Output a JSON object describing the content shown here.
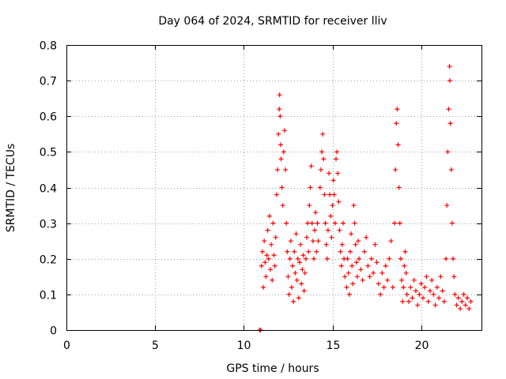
{
  "chart_data": {
    "type": "scatter",
    "title": "Day 064 of 2024, SRMTID for receiver lliv",
    "xlabel": "GPS time / hours",
    "ylabel": "SRMTID / TECUs",
    "xlim": [
      0,
      23.4
    ],
    "ylim": [
      0,
      0.8
    ],
    "xticks": [
      0,
      5,
      10,
      15,
      20
    ],
    "yticks": [
      0,
      0.1,
      0.2,
      0.3,
      0.4,
      0.5,
      0.6,
      0.7,
      0.8
    ],
    "xtick_labels": [
      "0",
      "5",
      "10",
      "15",
      "20"
    ],
    "ytick_labels": [
      "0",
      "0.1",
      "0.2",
      "0.3",
      "0.4",
      "0.5",
      "0.6",
      "0.7",
      "0.8"
    ],
    "grid": true,
    "marker": "+",
    "color": "#ff0000",
    "series": [
      {
        "name": "SRMTID",
        "points": [
          [
            10.9,
            0.0
          ],
          [
            10.92,
            0.0
          ],
          [
            10.95,
            0.0
          ],
          [
            11.0,
            0.18
          ],
          [
            11.05,
            0.22
          ],
          [
            11.1,
            0.12
          ],
          [
            11.15,
            0.25
          ],
          [
            11.2,
            0.19
          ],
          [
            11.25,
            0.15
          ],
          [
            11.3,
            0.21
          ],
          [
            11.35,
            0.28
          ],
          [
            11.4,
            0.2
          ],
          [
            11.45,
            0.32
          ],
          [
            11.5,
            0.17
          ],
          [
            11.55,
            0.24
          ],
          [
            11.6,
            0.14
          ],
          [
            11.65,
            0.3
          ],
          [
            11.7,
            0.21
          ],
          [
            11.75,
            0.18
          ],
          [
            11.8,
            0.26
          ],
          [
            11.85,
            0.38
          ],
          [
            11.9,
            0.45
          ],
          [
            11.95,
            0.55
          ],
          [
            12.0,
            0.62
          ],
          [
            12.02,
            0.66
          ],
          [
            12.05,
            0.6
          ],
          [
            12.08,
            0.52
          ],
          [
            12.1,
            0.48
          ],
          [
            12.15,
            0.4
          ],
          [
            12.2,
            0.35
          ],
          [
            12.25,
            0.5
          ],
          [
            12.3,
            0.56
          ],
          [
            12.35,
            0.45
          ],
          [
            12.4,
            0.3
          ],
          [
            12.45,
            0.22
          ],
          [
            12.5,
            0.15
          ],
          [
            12.55,
            0.1
          ],
          [
            12.6,
            0.2
          ],
          [
            12.65,
            0.25
          ],
          [
            12.7,
            0.12
          ],
          [
            12.75,
            0.18
          ],
          [
            12.8,
            0.08
          ],
          [
            12.85,
            0.22
          ],
          [
            12.9,
            0.16
          ],
          [
            12.95,
            0.27
          ],
          [
            13.0,
            0.14
          ],
          [
            13.05,
            0.2
          ],
          [
            13.1,
            0.09
          ],
          [
            13.15,
            0.19
          ],
          [
            13.2,
            0.24
          ],
          [
            13.25,
            0.13
          ],
          [
            13.3,
            0.17
          ],
          [
            13.35,
            0.21
          ],
          [
            13.4,
            0.11
          ],
          [
            13.45,
            0.16
          ],
          [
            13.5,
            0.2
          ],
          [
            13.55,
            0.26
          ],
          [
            13.6,
            0.3
          ],
          [
            13.65,
            0.22
          ],
          [
            13.7,
            0.35
          ],
          [
            13.75,
            0.4
          ],
          [
            13.8,
            0.46
          ],
          [
            13.85,
            0.3
          ],
          [
            13.9,
            0.25
          ],
          [
            13.95,
            0.2
          ],
          [
            14.0,
            0.28
          ],
          [
            14.05,
            0.33
          ],
          [
            14.1,
            0.22
          ],
          [
            14.15,
            0.3
          ],
          [
            14.2,
            0.25
          ],
          [
            14.3,
            0.4
          ],
          [
            14.35,
            0.45
          ],
          [
            14.4,
            0.5
          ],
          [
            14.45,
            0.55
          ],
          [
            14.5,
            0.48
          ],
          [
            14.55,
            0.38
          ],
          [
            14.6,
            0.3
          ],
          [
            14.65,
            0.24
          ],
          [
            14.7,
            0.2
          ],
          [
            14.75,
            0.28
          ],
          [
            14.8,
            0.44
          ],
          [
            14.85,
            0.38
          ],
          [
            14.9,
            0.32
          ],
          [
            14.95,
            0.26
          ],
          [
            15.0,
            0.35
          ],
          [
            15.05,
            0.42
          ],
          [
            15.1,
            0.38
          ],
          [
            15.15,
            0.3
          ],
          [
            15.2,
            0.48
          ],
          [
            15.25,
            0.5
          ],
          [
            15.3,
            0.44
          ],
          [
            15.35,
            0.36
          ],
          [
            15.4,
            0.28
          ],
          [
            15.45,
            0.22
          ],
          [
            15.5,
            0.18
          ],
          [
            15.55,
            0.24
          ],
          [
            15.6,
            0.3
          ],
          [
            15.65,
            0.2
          ],
          [
            15.7,
            0.15
          ],
          [
            15.8,
            0.12
          ],
          [
            15.85,
            0.2
          ],
          [
            15.9,
            0.16
          ],
          [
            15.95,
            0.1
          ],
          [
            16.0,
            0.22
          ],
          [
            16.05,
            0.27
          ],
          [
            16.1,
            0.18
          ],
          [
            16.15,
            0.13
          ],
          [
            16.2,
            0.35
          ],
          [
            16.25,
            0.3
          ],
          [
            16.3,
            0.24
          ],
          [
            16.35,
            0.19
          ],
          [
            16.4,
            0.15
          ],
          [
            16.45,
            0.25
          ],
          [
            16.5,
            0.2
          ],
          [
            16.6,
            0.17
          ],
          [
            16.7,
            0.14
          ],
          [
            16.8,
            0.22
          ],
          [
            16.9,
            0.26
          ],
          [
            17.0,
            0.18
          ],
          [
            17.1,
            0.15
          ],
          [
            17.2,
            0.2
          ],
          [
            17.3,
            0.16
          ],
          [
            17.4,
            0.24
          ],
          [
            17.5,
            0.19
          ],
          [
            17.6,
            0.13
          ],
          [
            17.7,
            0.1
          ],
          [
            17.8,
            0.16
          ],
          [
            17.9,
            0.12
          ],
          [
            18.0,
            0.18
          ],
          [
            18.1,
            0.14
          ],
          [
            18.2,
            0.2
          ],
          [
            18.3,
            0.25
          ],
          [
            18.4,
            0.12
          ],
          [
            18.5,
            0.3
          ],
          [
            18.55,
            0.45
          ],
          [
            18.6,
            0.58
          ],
          [
            18.65,
            0.62
          ],
          [
            18.7,
            0.52
          ],
          [
            18.75,
            0.4
          ],
          [
            18.8,
            0.3
          ],
          [
            18.85,
            0.2
          ],
          [
            18.9,
            0.14
          ],
          [
            18.95,
            0.08
          ],
          [
            19.0,
            0.12
          ],
          [
            19.05,
            0.18
          ],
          [
            19.1,
            0.22
          ],
          [
            19.15,
            0.16
          ],
          [
            19.2,
            0.1
          ],
          [
            19.3,
            0.08
          ],
          [
            19.4,
            0.12
          ],
          [
            19.5,
            0.09
          ],
          [
            19.6,
            0.14
          ],
          [
            19.7,
            0.11
          ],
          [
            19.8,
            0.07
          ],
          [
            19.9,
            0.1
          ],
          [
            20.0,
            0.13
          ],
          [
            20.1,
            0.09
          ],
          [
            20.2,
            0.12
          ],
          [
            20.3,
            0.15
          ],
          [
            20.4,
            0.08
          ],
          [
            20.5,
            0.11
          ],
          [
            20.6,
            0.14
          ],
          [
            20.7,
            0.1
          ],
          [
            20.8,
            0.07
          ],
          [
            20.9,
            0.12
          ],
          [
            21.0,
            0.09
          ],
          [
            21.1,
            0.15
          ],
          [
            21.2,
            0.11
          ],
          [
            21.3,
            0.08
          ],
          [
            21.4,
            0.2
          ],
          [
            21.45,
            0.35
          ],
          [
            21.5,
            0.5
          ],
          [
            21.55,
            0.62
          ],
          [
            21.6,
            0.74
          ],
          [
            21.62,
            0.7
          ],
          [
            21.65,
            0.58
          ],
          [
            21.7,
            0.45
          ],
          [
            21.75,
            0.3
          ],
          [
            21.8,
            0.2
          ],
          [
            21.85,
            0.15
          ],
          [
            21.9,
            0.1
          ],
          [
            22.0,
            0.07
          ],
          [
            22.1,
            0.09
          ],
          [
            22.2,
            0.06
          ],
          [
            22.3,
            0.08
          ],
          [
            22.4,
            0.1
          ],
          [
            22.5,
            0.07
          ],
          [
            22.6,
            0.09
          ],
          [
            22.7,
            0.06
          ],
          [
            22.8,
            0.08
          ]
        ]
      }
    ]
  }
}
